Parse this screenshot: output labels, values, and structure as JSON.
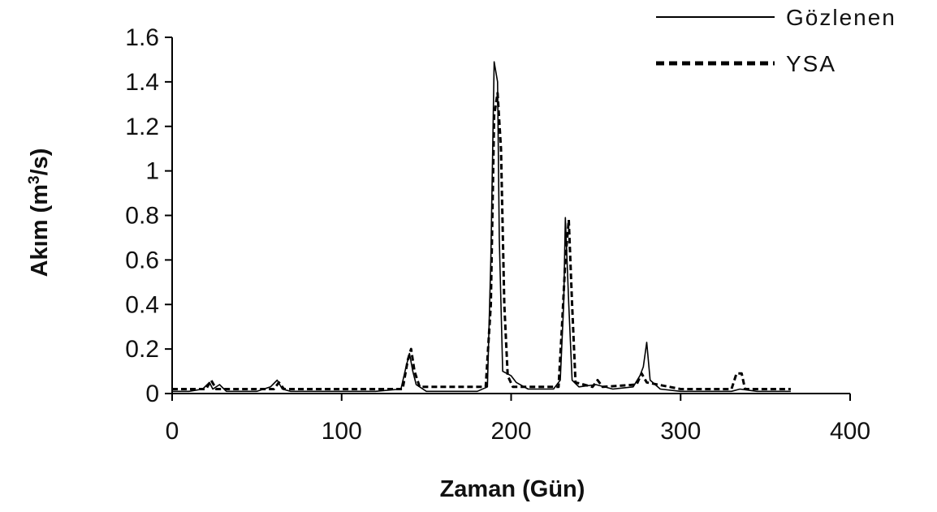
{
  "chart_data": {
    "type": "line",
    "title": "",
    "xlabel": "Zaman (Gün)",
    "ylabel": "Akım (m",
    "ylabel_sup": "3",
    "ylabel_suffix": "/s)",
    "xlim": [
      0,
      400
    ],
    "ylim": [
      0,
      1.6
    ],
    "x_ticks": [
      0,
      100,
      200,
      300,
      400
    ],
    "y_ticks": [
      0,
      0.2,
      0.4,
      0.6,
      0.8,
      1,
      1.2,
      1.4,
      1.6
    ],
    "x_tick_labels": [
      "0",
      "100",
      "200",
      "300",
      "400"
    ],
    "y_tick_labels": [
      "0",
      "0.2",
      "0.4",
      "0.6",
      "0.8",
      "1",
      "1.2",
      "1.4",
      "1.6"
    ],
    "grid": false,
    "legend_position": "top-right",
    "series": [
      {
        "name": "Gözlenen",
        "style": "solid",
        "color": "#000000",
        "points": [
          [
            0,
            0.01
          ],
          [
            10,
            0.01
          ],
          [
            18,
            0.02
          ],
          [
            22,
            0.05
          ],
          [
            24,
            0.02
          ],
          [
            28,
            0.04
          ],
          [
            32,
            0.01
          ],
          [
            50,
            0.01
          ],
          [
            58,
            0.03
          ],
          [
            62,
            0.06
          ],
          [
            65,
            0.02
          ],
          [
            70,
            0.01
          ],
          [
            100,
            0.01
          ],
          [
            120,
            0.01
          ],
          [
            135,
            0.02
          ],
          [
            138,
            0.12
          ],
          [
            140,
            0.18
          ],
          [
            142,
            0.1
          ],
          [
            144,
            0.04
          ],
          [
            150,
            0.01
          ],
          [
            180,
            0.01
          ],
          [
            186,
            0.03
          ],
          [
            188,
            0.6
          ],
          [
            190,
            1.49
          ],
          [
            192,
            1.4
          ],
          [
            193,
            0.7
          ],
          [
            195,
            0.1
          ],
          [
            200,
            0.08
          ],
          [
            203,
            0.05
          ],
          [
            210,
            0.02
          ],
          [
            225,
            0.02
          ],
          [
            229,
            0.06
          ],
          [
            231,
            0.4
          ],
          [
            232,
            0.79
          ],
          [
            234,
            0.4
          ],
          [
            236,
            0.06
          ],
          [
            240,
            0.03
          ],
          [
            250,
            0.04
          ],
          [
            260,
            0.02
          ],
          [
            272,
            0.03
          ],
          [
            276,
            0.08
          ],
          [
            278,
            0.12
          ],
          [
            280,
            0.23
          ],
          [
            282,
            0.06
          ],
          [
            288,
            0.02
          ],
          [
            300,
            0.01
          ],
          [
            330,
            0.01
          ],
          [
            335,
            0.02
          ],
          [
            345,
            0.01
          ],
          [
            365,
            0.01
          ]
        ]
      },
      {
        "name": "YSA",
        "style": "dashed",
        "color": "#000000",
        "points": [
          [
            0,
            0.02
          ],
          [
            20,
            0.02
          ],
          [
            23,
            0.06
          ],
          [
            26,
            0.02
          ],
          [
            60,
            0.02
          ],
          [
            63,
            0.05
          ],
          [
            66,
            0.02
          ],
          [
            100,
            0.02
          ],
          [
            136,
            0.02
          ],
          [
            139,
            0.15
          ],
          [
            141,
            0.2
          ],
          [
            143,
            0.1
          ],
          [
            146,
            0.03
          ],
          [
            185,
            0.03
          ],
          [
            188,
            0.4
          ],
          [
            190,
            1.25
          ],
          [
            192,
            1.35
          ],
          [
            194,
            1.1
          ],
          [
            196,
            0.4
          ],
          [
            198,
            0.08
          ],
          [
            201,
            0.03
          ],
          [
            228,
            0.03
          ],
          [
            230,
            0.3
          ],
          [
            232,
            0.6
          ],
          [
            234,
            0.78
          ],
          [
            236,
            0.4
          ],
          [
            238,
            0.05
          ],
          [
            248,
            0.03
          ],
          [
            251,
            0.06
          ],
          [
            254,
            0.03
          ],
          [
            274,
            0.04
          ],
          [
            277,
            0.09
          ],
          [
            280,
            0.05
          ],
          [
            300,
            0.02
          ],
          [
            330,
            0.02
          ],
          [
            333,
            0.09
          ],
          [
            336,
            0.09
          ],
          [
            338,
            0.02
          ],
          [
            365,
            0.02
          ]
        ]
      }
    ]
  }
}
